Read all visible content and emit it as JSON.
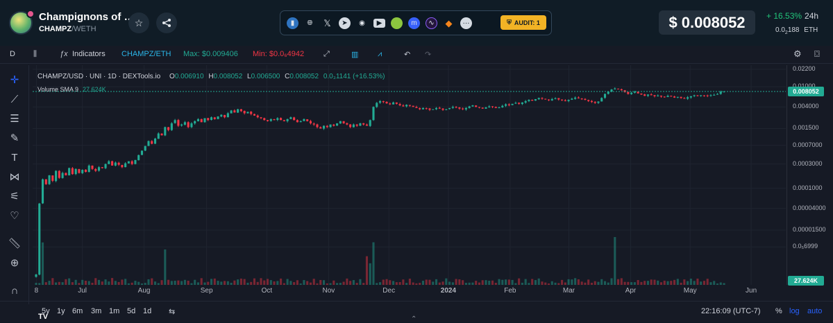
{
  "header": {
    "token_name": "Champignons of …",
    "token_symbol": "CHAMPZ",
    "pair_separator": "/",
    "quote_symbol": "WETH",
    "favorite_icon": "star-icon",
    "share_icon": "share-icon",
    "social_icons": [
      "chart-icon",
      "globe-icon",
      "x-twitter-icon",
      "telegram-icon",
      "discord-icon",
      "youtube-icon",
      "coingecko-icon",
      "coinmarketcap-icon",
      "dextools-icon",
      "metamask-icon",
      "more-icon"
    ],
    "audit_label": "AUDIT: 1",
    "price_usd": "$ 0.008052",
    "change_pct": "+ 16.53%",
    "change_period": "24h",
    "price_eth_prefix": "0.0",
    "price_eth_sub": "2",
    "price_eth_rest": "188",
    "price_eth_unit": "ETH"
  },
  "toolbar": {
    "interval": "D",
    "indicators_label": "Indicators",
    "pair_label": "CHAMPZ/ETH",
    "max_label": "Max: $0.009406",
    "min_label": "Min: $0.0₆4942"
  },
  "legend": {
    "title": "CHAMPZ/USD · UNI · 1D · DEXTools.io",
    "o_label": "O",
    "o_value": "0.006910",
    "h_label": "H",
    "h_value": "0.008052",
    "l_label": "L",
    "l_value": "0.006500",
    "c_label": "C",
    "c_value": "0.008052",
    "chg": "0.0₃1141 (+16.53%)",
    "volume_label": "Volume SMA 9",
    "volume_value": "27.624K"
  },
  "bottom": {
    "ranges": [
      "5y",
      "1y",
      "6m",
      "3m",
      "1m",
      "5d",
      "1d"
    ],
    "time": "22:16:09 (UTC-7)",
    "percent_label": "%",
    "log_label": "log",
    "auto_label": "auto"
  },
  "colors": {
    "up": "#22ab94",
    "down": "#f23645",
    "accent": "#f2b325",
    "background": "#161a25"
  },
  "chart_data": {
    "type": "candlestick",
    "title": "CHAMPZ/USD · UNI · 1D · DEXTools.io",
    "y_scale": "log",
    "y_ticks": [
      "0.02200",
      "0.01000",
      "0.004000",
      "0.001500",
      "0.0007000",
      "0.0003000",
      "0.0001000",
      "0.00004000",
      "0.00001500",
      "0.0₅6999"
    ],
    "x_ticks": [
      "8",
      "Jul",
      "Aug",
      "Sep",
      "Oct",
      "Nov",
      "Dec",
      "2024",
      "Feb",
      "Mar",
      "Apr",
      "May",
      "Jun"
    ],
    "last_price": "0.008052",
    "last_volume": "27.624K",
    "close_series": [
      2e-06,
      5e-05,
      0.00015,
      0.00012,
      0.00018,
      0.00014,
      0.00022,
      0.00016,
      0.0002,
      0.00018,
      0.00025,
      0.00019,
      0.00024,
      0.0002,
      0.00023,
      0.00021,
      0.00028,
      0.00024,
      0.00022,
      0.00026,
      0.00025,
      0.0003,
      0.00034,
      0.00028,
      0.00032,
      0.00029,
      0.00026,
      0.00031,
      0.00034,
      0.0003,
      0.00036,
      0.00045,
      0.00055,
      0.00068,
      0.00085,
      0.00075,
      0.00095,
      0.0012,
      0.0011,
      0.0016,
      0.0014,
      0.0019,
      0.0022,
      0.0017,
      0.0018,
      0.002,
      0.0016,
      0.0019,
      0.0021,
      0.0023,
      0.002,
      0.0024,
      0.0022,
      0.0025,
      0.0023,
      0.0026,
      0.0028,
      0.0025,
      0.003,
      0.0034,
      0.0031,
      0.0036,
      0.0033,
      0.003,
      0.0032,
      0.0029,
      0.0027,
      0.0025,
      0.0024,
      0.0022,
      0.0021,
      0.0023,
      0.0022,
      0.0024,
      0.0022,
      0.0021,
      0.0023,
      0.0025,
      0.0022,
      0.002,
      0.0021,
      0.0023,
      0.0021,
      0.0019,
      0.0018,
      0.0016,
      0.0015,
      0.0017,
      0.0016,
      0.0018,
      0.0017,
      0.0019,
      0.0021,
      0.0019,
      0.0018,
      0.0016,
      0.0018,
      0.0017,
      0.0019,
      0.0018,
      0.0017,
      0.0022,
      0.004,
      0.0048,
      0.0052,
      0.005,
      0.0047,
      0.0045,
      0.0049,
      0.0046,
      0.0043,
      0.0041,
      0.0044,
      0.0042,
      0.004,
      0.0038,
      0.0036,
      0.0038,
      0.0037,
      0.0035,
      0.0036,
      0.0038,
      0.0037,
      0.0035,
      0.0036,
      0.0038,
      0.004,
      0.0039,
      0.0037,
      0.0036,
      0.0038,
      0.0041,
      0.0043,
      0.004,
      0.0039,
      0.0037,
      0.0039,
      0.0041,
      0.004,
      0.0038,
      0.0039,
      0.0042,
      0.0045,
      0.0043,
      0.0046,
      0.0048,
      0.0046,
      0.0049,
      0.0052,
      0.0055,
      0.0053,
      0.0057,
      0.006,
      0.0058,
      0.0056,
      0.0054,
      0.0057,
      0.0059,
      0.0056,
      0.0054,
      0.0052,
      0.0055,
      0.0058,
      0.0061,
      0.0059,
      0.0057,
      0.0055,
      0.0052,
      0.005,
      0.0048,
      0.0051,
      0.006,
      0.0072,
      0.008,
      0.0088,
      0.0092,
      0.009,
      0.0085,
      0.0078,
      0.0072,
      0.0076,
      0.008,
      0.0074,
      0.007,
      0.0066,
      0.007,
      0.0068,
      0.0065,
      0.0067,
      0.0064,
      0.0062,
      0.0066,
      0.0064,
      0.0061,
      0.0063,
      0.006,
      0.0058,
      0.0062,
      0.0065,
      0.0068,
      0.0066,
      0.0068,
      0.0067,
      0.0066,
      0.0068,
      0.0069,
      0.0072,
      0.008,
      0.0081
    ]
  }
}
